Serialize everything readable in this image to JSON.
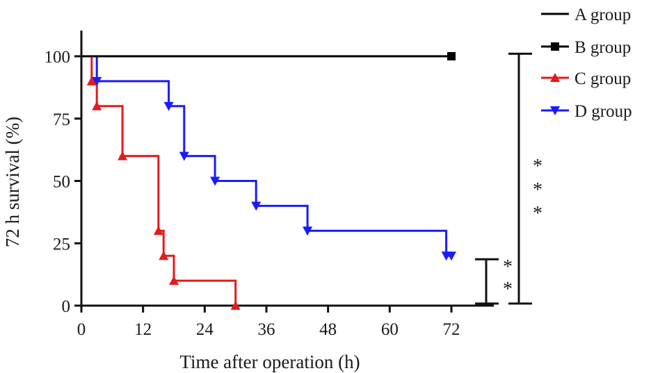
{
  "chart_data": {
    "type": "line",
    "xlabel": "Time after operation (h)",
    "ylabel": "72 h survival (%)",
    "xlim": [
      0,
      80
    ],
    "ylim": [
      0,
      110
    ],
    "xticks": [
      0,
      12,
      24,
      36,
      48,
      60,
      72
    ],
    "yticks": [
      0,
      25,
      50,
      75,
      100
    ],
    "grid": false,
    "legend_position": "top-right",
    "series": [
      {
        "name": "A group",
        "color": "#000000",
        "marker": "none",
        "steps": [
          [
            0,
            100
          ],
          [
            72,
            100
          ]
        ],
        "markers": []
      },
      {
        "name": "B group",
        "color": "#000000",
        "marker": "square",
        "steps": [
          [
            0,
            100
          ],
          [
            72,
            100
          ]
        ],
        "markers": [
          [
            72,
            100
          ]
        ]
      },
      {
        "name": "C group",
        "color": "#e41a1c",
        "marker": "triangle-up",
        "steps": [
          [
            0,
            100
          ],
          [
            2,
            100
          ],
          [
            2,
            90
          ],
          [
            3,
            90
          ],
          [
            3,
            80
          ],
          [
            8,
            80
          ],
          [
            8,
            60
          ],
          [
            15,
            60
          ],
          [
            15,
            30
          ],
          [
            16,
            30
          ],
          [
            16,
            20
          ],
          [
            18,
            20
          ],
          [
            18,
            10
          ],
          [
            30,
            10
          ],
          [
            30,
            0
          ]
        ],
        "markers": [
          [
            2,
            90
          ],
          [
            3,
            80
          ],
          [
            8,
            60
          ],
          [
            15,
            30
          ],
          [
            16,
            20
          ],
          [
            18,
            10
          ],
          [
            30,
            0
          ]
        ]
      },
      {
        "name": "D group",
        "color": "#1a1aff",
        "marker": "triangle-down",
        "steps": [
          [
            0,
            100
          ],
          [
            3,
            100
          ],
          [
            3,
            90
          ],
          [
            17,
            90
          ],
          [
            17,
            80
          ],
          [
            20,
            80
          ],
          [
            20,
            60
          ],
          [
            26,
            60
          ],
          [
            26,
            50
          ],
          [
            34,
            50
          ],
          [
            34,
            40
          ],
          [
            44,
            40
          ],
          [
            44,
            30
          ],
          [
            71,
            30
          ],
          [
            71,
            20
          ],
          [
            72,
            20
          ]
        ],
        "markers": [
          [
            3,
            90
          ],
          [
            17,
            80
          ],
          [
            20,
            60
          ],
          [
            26,
            50
          ],
          [
            34,
            40
          ],
          [
            44,
            30
          ],
          [
            71,
            20
          ],
          [
            72,
            20
          ]
        ]
      }
    ],
    "significance": [
      {
        "label": "* * *",
        "from": 0,
        "to": 101
      },
      {
        "label": "* *",
        "from": 0,
        "to": 20
      }
    ]
  }
}
